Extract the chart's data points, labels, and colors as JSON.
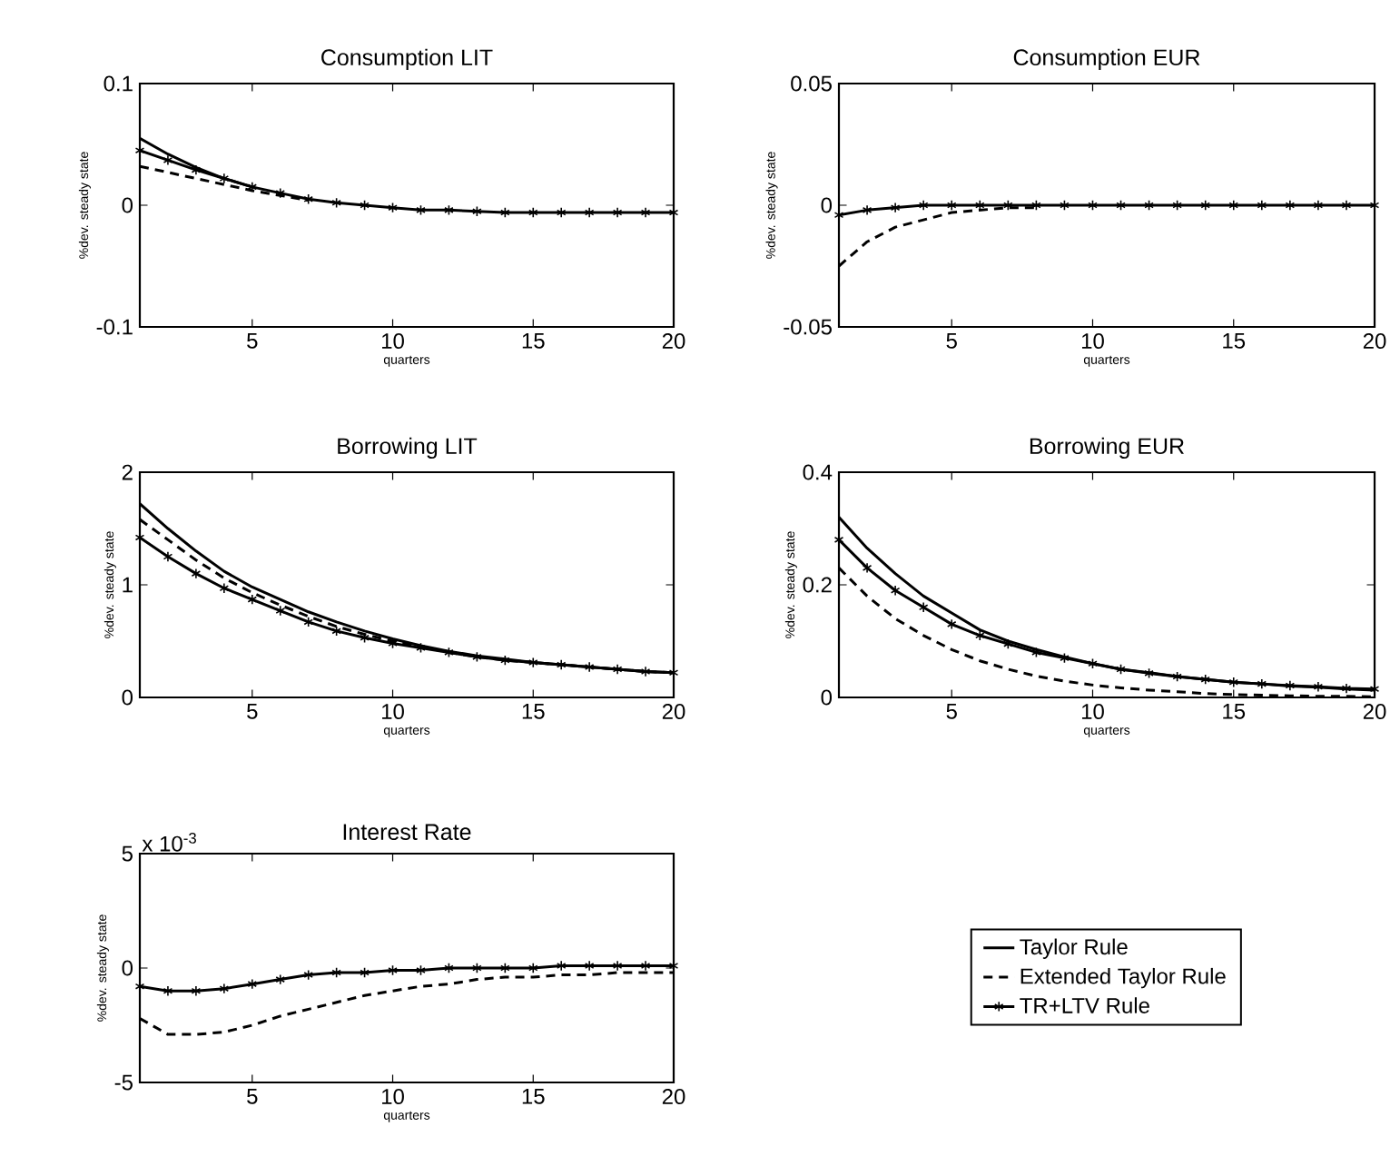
{
  "chart_data": [
    {
      "type": "line",
      "title": "Consumption LIT",
      "xlabel": "quarters",
      "ylabel": "%dev. steady state",
      "x": [
        1,
        2,
        3,
        4,
        5,
        6,
        7,
        8,
        9,
        10,
        11,
        12,
        13,
        14,
        15,
        16,
        17,
        18,
        19,
        20
      ],
      "xlim": [
        1,
        20
      ],
      "xticks": [
        5,
        10,
        15,
        20
      ],
      "ylim": [
        -0.1,
        0.1
      ],
      "yticks": [
        -0.1,
        0,
        0.1
      ],
      "legend": false,
      "series": [
        {
          "color": "#000000",
          "line_style": "solid",
          "marker": "none",
          "values": [
            0.055,
            0.042,
            0.031,
            0.022,
            0.015,
            null,
            null,
            null,
            null,
            null,
            null,
            null,
            null,
            null,
            null,
            null,
            null,
            null,
            null,
            null
          ]
        },
        {
          "color": "#000000",
          "line_style": "dashed",
          "marker": "none",
          "values": [
            0.032,
            0.027,
            0.022,
            0.017,
            0.012,
            0.008,
            0.004,
            null,
            null,
            null,
            null,
            null,
            null,
            null,
            null,
            null,
            null,
            null,
            null,
            null
          ]
        },
        {
          "color": "#000000",
          "line_style": "solid",
          "marker": "cross",
          "values": [
            0.045,
            0.037,
            0.029,
            0.022,
            0.015,
            0.01,
            0.005,
            0.002,
            0.0,
            -0.002,
            -0.004,
            -0.004,
            -0.005,
            -0.006,
            -0.006,
            -0.006,
            -0.006,
            -0.006,
            -0.006,
            -0.006
          ]
        }
      ]
    },
    {
      "type": "line",
      "title": "Consumption EUR",
      "xlabel": "quarters",
      "ylabel": "%dev. steady state",
      "x": [
        1,
        2,
        3,
        4,
        5,
        6,
        7,
        8,
        9,
        10,
        11,
        12,
        13,
        14,
        15,
        16,
        17,
        18,
        19,
        20
      ],
      "xlim": [
        1,
        20
      ],
      "xticks": [
        5,
        10,
        15,
        20
      ],
      "ylim": [
        -0.05,
        0.05
      ],
      "yticks": [
        -0.05,
        0,
        0.05
      ],
      "legend": false,
      "series": [
        {
          "color": "#000000",
          "line_style": "dashed",
          "marker": "none",
          "values": [
            -0.025,
            -0.015,
            -0.009,
            -0.006,
            -0.003,
            -0.002,
            -0.001,
            -0.001,
            null,
            null,
            null,
            null,
            null,
            null,
            null,
            null,
            null,
            null,
            null,
            null
          ]
        },
        {
          "color": "#000000",
          "line_style": "solid",
          "marker": "cross",
          "values": [
            -0.004,
            -0.002,
            -0.001,
            0,
            0,
            0,
            0,
            0,
            0,
            0,
            0,
            0,
            0,
            0,
            0,
            0,
            0,
            0,
            0,
            0
          ]
        }
      ]
    },
    {
      "type": "line",
      "title": "Borrowing LIT",
      "xlabel": "quarters",
      "ylabel": "%dev. steady state",
      "x": [
        1,
        2,
        3,
        4,
        5,
        6,
        7,
        8,
        9,
        10,
        11,
        12,
        13,
        14,
        15,
        16,
        17,
        18,
        19,
        20
      ],
      "xlim": [
        1,
        20
      ],
      "xticks": [
        5,
        10,
        15,
        20
      ],
      "ylim": [
        0,
        2
      ],
      "yticks": [
        0,
        1,
        2
      ],
      "legend": false,
      "series": [
        {
          "color": "#000000",
          "line_style": "solid",
          "marker": "none",
          "values": [
            1.72,
            1.5,
            1.3,
            1.12,
            0.98,
            0.87,
            0.76,
            0.67,
            0.59,
            0.52,
            0.46,
            0.41,
            0.37,
            0.34,
            0.31,
            0.29,
            0.27,
            0.25,
            0.23,
            0.22
          ]
        },
        {
          "color": "#000000",
          "line_style": "dashed",
          "marker": "none",
          "values": [
            1.58,
            1.4,
            1.22,
            1.06,
            0.93,
            0.82,
            0.72,
            0.63,
            0.56,
            0.5,
            0.45,
            0.4,
            0.36,
            0.33,
            0.31,
            0.29,
            0.27,
            0.25,
            0.23,
            0.22
          ]
        },
        {
          "color": "#000000",
          "line_style": "solid",
          "marker": "cross",
          "values": [
            1.42,
            1.25,
            1.1,
            0.97,
            0.87,
            0.77,
            0.67,
            0.59,
            0.53,
            0.48,
            0.44,
            0.4,
            0.36,
            0.33,
            0.31,
            0.29,
            0.27,
            0.25,
            0.23,
            0.22
          ]
        }
      ]
    },
    {
      "type": "line",
      "title": "Borrowing EUR",
      "xlabel": "quarters",
      "ylabel": "%dev. steady state",
      "x": [
        1,
        2,
        3,
        4,
        5,
        6,
        7,
        8,
        9,
        10,
        11,
        12,
        13,
        14,
        15,
        16,
        17,
        18,
        19,
        20
      ],
      "xlim": [
        1,
        20
      ],
      "xticks": [
        5,
        10,
        15,
        20
      ],
      "ylim": [
        0,
        0.4
      ],
      "yticks": [
        0,
        0.2,
        0.4
      ],
      "legend": false,
      "series": [
        {
          "color": "#000000",
          "line_style": "solid",
          "marker": "none",
          "values": [
            0.32,
            0.265,
            0.22,
            0.18,
            0.15,
            0.12,
            0.1,
            0.085,
            0.072,
            0.06,
            0.05,
            0.044,
            0.037,
            0.032,
            0.027,
            0.024,
            0.02,
            0.018,
            0.015,
            0.013
          ]
        },
        {
          "color": "#000000",
          "line_style": "dashed",
          "marker": "none",
          "values": [
            0.23,
            0.18,
            0.14,
            0.11,
            0.085,
            0.065,
            0.05,
            0.038,
            0.029,
            0.022,
            0.017,
            0.013,
            0.01,
            0.007,
            0.005,
            0.004,
            0.003,
            0.002,
            0.002,
            0.001
          ]
        },
        {
          "color": "#000000",
          "line_style": "solid",
          "marker": "cross",
          "values": [
            0.28,
            0.23,
            0.19,
            0.16,
            0.13,
            0.11,
            0.095,
            0.08,
            0.07,
            0.06,
            0.05,
            0.043,
            0.037,
            0.032,
            0.027,
            0.024,
            0.021,
            0.019,
            0.016,
            0.015
          ]
        }
      ]
    },
    {
      "type": "line",
      "title": "Interest Rate",
      "xlabel": "quarters",
      "ylabel": "%dev. steady state",
      "x": [
        1,
        2,
        3,
        4,
        5,
        6,
        7,
        8,
        9,
        10,
        11,
        12,
        13,
        14,
        15,
        16,
        17,
        18,
        19,
        20
      ],
      "xlim": [
        1,
        20
      ],
      "xticks": [
        5,
        10,
        15,
        20
      ],
      "ylim": [
        -5,
        5
      ],
      "yticks": [
        -5,
        0,
        5
      ],
      "legend": "right",
      "annotations": [
        "x 10$^{-3}$"
      ],
      "series": [
        {
          "name": "Taylor Rule",
          "color": "#000000",
          "line_style": "solid",
          "marker": "none",
          "values": [
            null,
            null,
            null,
            null,
            null,
            null,
            null,
            null,
            null,
            null,
            null,
            null,
            null,
            null,
            null,
            null,
            null,
            null,
            null,
            null
          ]
        },
        {
          "name": "Extended Taylor Rule",
          "color": "#000000",
          "line_style": "dashed",
          "marker": "none",
          "values": [
            -2.2,
            -2.9,
            -2.9,
            -2.8,
            -2.5,
            -2.1,
            -1.8,
            -1.5,
            -1.2,
            -1.0,
            -0.8,
            -0.7,
            -0.5,
            -0.4,
            -0.4,
            -0.3,
            -0.3,
            -0.2,
            -0.2,
            -0.2
          ]
        },
        {
          "name": "TR+LTV Rule",
          "color": "#000000",
          "line_style": "solid",
          "marker": "cross",
          "values": [
            -0.8,
            -1.0,
            -1.0,
            -0.9,
            -0.7,
            -0.5,
            -0.3,
            -0.2,
            -0.2,
            -0.1,
            -0.1,
            0,
            0,
            0,
            0,
            0.1,
            0.1,
            0.1,
            0.1,
            0.1
          ]
        }
      ]
    }
  ]
}
